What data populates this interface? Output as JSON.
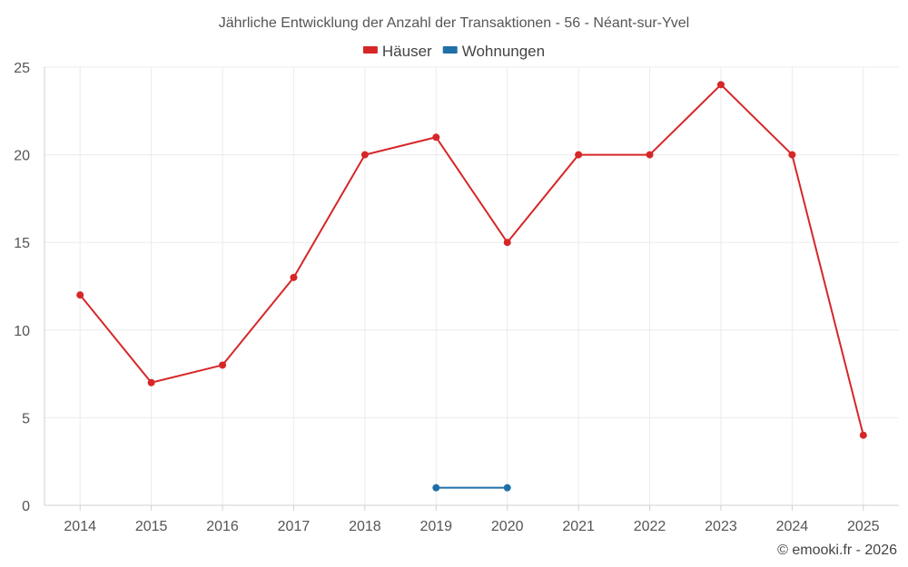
{
  "chart_data": {
    "type": "line",
    "title": "Jährliche Entwicklung der Anzahl der Transaktionen - 56 - Néant-sur-Yvel",
    "categories": [
      "2014",
      "2015",
      "2016",
      "2017",
      "2018",
      "2019",
      "2020",
      "2021",
      "2022",
      "2023",
      "2024",
      "2025"
    ],
    "series": [
      {
        "name": "Häuser",
        "color": "#d62728",
        "values": [
          12,
          7,
          8,
          13,
          20,
          21,
          15,
          20,
          20,
          24,
          20,
          4
        ]
      },
      {
        "name": "Wohnungen",
        "color": "#1f6fa8",
        "values": [
          null,
          null,
          null,
          null,
          null,
          1,
          1,
          null,
          null,
          null,
          null,
          null
        ]
      }
    ],
    "ylim": [
      0,
      25
    ],
    "yticks": [
      0,
      5,
      10,
      15,
      20,
      25
    ],
    "xlabel": "",
    "ylabel": "",
    "grid": true,
    "legend": "top-center"
  },
  "credit": "© emooki.fr - 2026"
}
